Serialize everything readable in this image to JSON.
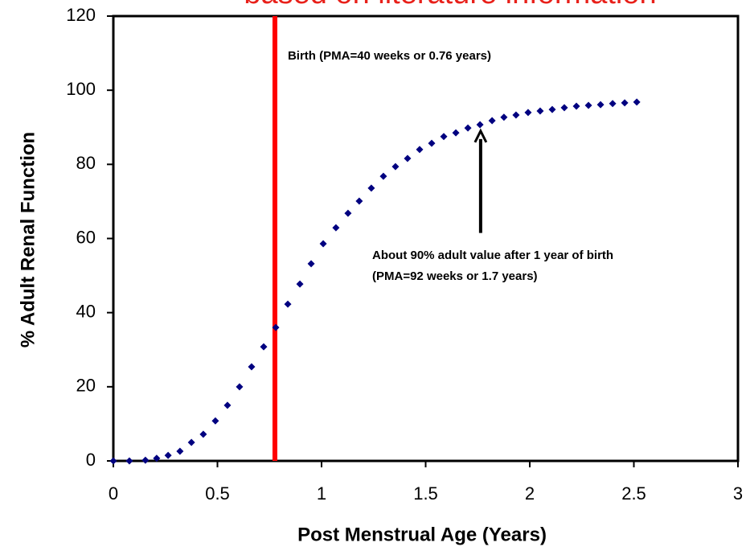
{
  "chart_data": {
    "type": "scatter",
    "title": "based on literature information",
    "xlabel": "Post Menstrual Age (Years)",
    "ylabel": "% Adult Renal Function",
    "xlim": [
      0,
      3
    ],
    "ylim": [
      0,
      120
    ],
    "xticks": [
      0,
      0.5,
      1,
      1.5,
      2,
      2.5,
      3
    ],
    "yticks": [
      0,
      20,
      40,
      60,
      80,
      100,
      120
    ],
    "color": "#000080",
    "x": [
      0,
      0.077,
      0.154,
      0.208,
      0.263,
      0.32,
      0.375,
      0.432,
      0.49,
      0.548,
      0.606,
      0.664,
      0.722,
      0.78,
      0.838,
      0.896,
      0.95,
      1.008,
      1.069,
      1.127,
      1.181,
      1.239,
      1.297,
      1.355,
      1.413,
      1.471,
      1.529,
      1.587,
      1.645,
      1.703,
      1.761,
      1.819,
      1.876,
      1.934,
      1.992,
      2.05,
      2.108,
      2.166,
      2.224,
      2.282,
      2.34,
      2.398,
      2.456,
      2.514
    ],
    "values": [
      0,
      0,
      0.2,
      0.7,
      1.5,
      2.6,
      5,
      7.2,
      10.8,
      15,
      20,
      25.4,
      30.8,
      36,
      42.3,
      47.7,
      53.2,
      58.6,
      62.9,
      66.8,
      70.1,
      73.6,
      76.8,
      79.4,
      81.6,
      84,
      85.7,
      87.5,
      88.5,
      89.8,
      90.7,
      91.8,
      92.7,
      93.3,
      94,
      94.4,
      94.8,
      95.3,
      95.7,
      95.9,
      96.1,
      96.4,
      96.6,
      96.8
    ],
    "vline": {
      "x": 0.776,
      "color": "#ff0000",
      "text": "Birth (PMA=40 weeks or 0.76 years)"
    },
    "arrow": {
      "x": 1.764,
      "y_tip": 89,
      "y_tail": 61.5,
      "text": [
        "About 90% adult value after 1 year of birth",
        "(PMA=92 weeks or 1.7 years)"
      ]
    }
  }
}
